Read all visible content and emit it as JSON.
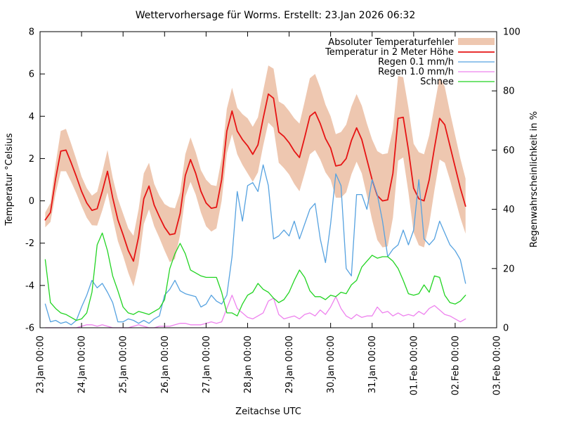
{
  "chart_data": {
    "type": "line",
    "title": "Wettervorhersage für Worms. Erstellt: 23.Jan 2026 06:32",
    "xlabel": "Zeitachse UTC",
    "ylabel_left": "Temperatur °Celsius",
    "ylabel_right": "Regenwahrscheinlichkeit in %",
    "grid": false,
    "legend_position": "top-right-inside",
    "x_axis": {
      "range_days": [
        0,
        11
      ],
      "tick_labels": [
        "23.Jan 00:00",
        "24.Jan 00:00",
        "25.Jan 00:00",
        "26.Jan 00:00",
        "27.Jan 00:00",
        "28.Jan 00:00",
        "29.Jan 00:00",
        "30.Jan 00:00",
        "31.Jan 00:00",
        "01.Feb 00:00",
        "02.Feb 00:00",
        "03.Feb 00:00"
      ]
    },
    "y_left": {
      "range": [
        -6,
        8
      ],
      "ticks": [
        8,
        6,
        4,
        2,
        0,
        -2,
        -4,
        -6
      ]
    },
    "y_right": {
      "range": [
        0,
        100
      ],
      "ticks": [
        100,
        80,
        60,
        40,
        20,
        0
      ]
    },
    "legend": [
      {
        "label": "Absoluter Temperaturfehler",
        "type": "band",
        "color": "#eec7b0"
      },
      {
        "label": "Temperatur in 2 Meter Höhe",
        "type": "line",
        "color": "#e61414",
        "axis": "left"
      },
      {
        "label": "Regen 0.1 mm/h",
        "type": "line",
        "color": "#56a2e0",
        "axis": "right"
      },
      {
        "label": "Regen 1.0 mm/h",
        "type": "line",
        "color": "#ee82ee",
        "axis": "right"
      },
      {
        "label": "Schnee",
        "type": "line",
        "color": "#22d422",
        "axis": "right"
      }
    ],
    "sampling": {
      "unit": "days since 23.Jan 00:00 UTC",
      "start_days": 0.125,
      "step_days": 0.125,
      "count": 82
    },
    "series": {
      "temperature_c": [
        -0.9,
        -0.55,
        1.05,
        2.35,
        2.4,
        1.8,
        1.15,
        0.45,
        -0.1,
        -0.45,
        -0.37,
        0.45,
        1.4,
        0.15,
        -0.9,
        -1.6,
        -2.35,
        -2.85,
        -1.7,
        0.1,
        0.7,
        -0.2,
        -0.75,
        -1.25,
        -1.6,
        -1.55,
        -0.6,
        1.2,
        1.95,
        1.3,
        0.45,
        -0.1,
        -0.35,
        -0.3,
        1.0,
        3.3,
        4.25,
        3.3,
        2.9,
        2.6,
        2.2,
        2.65,
        3.9,
        5.05,
        4.85,
        3.25,
        3.05,
        2.75,
        2.35,
        2.05,
        3.0,
        4.0,
        4.2,
        3.65,
        2.95,
        2.5,
        1.65,
        1.7,
        2.0,
        2.85,
        3.45,
        2.9,
        1.95,
        1.0,
        0.25,
        0.0,
        0.05,
        1.3,
        3.9,
        3.95,
        2.4,
        0.6,
        0.1,
        0.0,
        1.0,
        2.5,
        3.9,
        3.6,
        2.6,
        1.6,
        0.6,
        -0.25
      ],
      "temperature_error_c": [
        0.35,
        0.45,
        0.7,
        0.95,
        1.0,
        0.9,
        0.8,
        0.7,
        0.7,
        0.7,
        0.8,
        0.9,
        1.0,
        0.95,
        1.0,
        1.0,
        1.05,
        1.2,
        1.3,
        1.2,
        1.1,
        1.0,
        1.0,
        1.1,
        1.3,
        1.2,
        1.0,
        1.0,
        1.05,
        1.0,
        1.0,
        1.1,
        1.1,
        1.0,
        1.0,
        1.05,
        1.1,
        1.1,
        1.2,
        1.3,
        1.3,
        1.3,
        1.3,
        1.35,
        1.4,
        1.45,
        1.5,
        1.5,
        1.55,
        1.6,
        1.7,
        1.8,
        1.8,
        1.7,
        1.6,
        1.5,
        1.5,
        1.55,
        1.6,
        1.6,
        1.6,
        1.6,
        1.7,
        1.9,
        2.1,
        2.2,
        2.2,
        2.1,
        2.0,
        1.9,
        2.0,
        2.1,
        2.2,
        2.2,
        2.1,
        2.0,
        1.95,
        1.8,
        1.6,
        1.5,
        1.4,
        1.3
      ],
      "rain_01_pct": [
        8,
        2,
        2.5,
        1.5,
        2,
        1,
        2.5,
        7,
        11,
        16,
        13.5,
        15,
        12,
        8.5,
        2,
        2,
        3,
        2.5,
        1.5,
        2.5,
        1.5,
        3,
        4,
        11,
        13,
        16,
        12.5,
        11.5,
        11,
        10.5,
        7,
        8,
        11,
        9,
        8,
        11,
        24,
        46,
        36,
        48,
        49,
        46,
        55,
        48,
        30,
        31,
        33,
        31,
        36,
        30,
        35,
        40,
        42,
        30,
        22,
        35,
        52,
        48,
        20,
        17.5,
        45,
        45,
        40,
        50,
        45,
        36,
        24,
        26.5,
        28,
        33,
        28,
        33,
        50,
        30,
        28,
        30,
        36,
        32,
        28,
        26,
        23,
        15
      ],
      "rain_10_pct": [
        0,
        0,
        0,
        0,
        0,
        0,
        0,
        0.5,
        1,
        1,
        0.5,
        1,
        0.5,
        0,
        0,
        0,
        0,
        0.5,
        1,
        0.5,
        0,
        0,
        0.5,
        0.5,
        0.5,
        1,
        1.5,
        1.5,
        1,
        1,
        1,
        1.5,
        2,
        1.5,
        2,
        6.5,
        11,
        6.5,
        5,
        3.5,
        3,
        4,
        5,
        9,
        10,
        4.5,
        3,
        3.5,
        4,
        3,
        4.5,
        5,
        4,
        6,
        4.5,
        7,
        10.5,
        6.5,
        4,
        3,
        4.5,
        3.5,
        4,
        4,
        7,
        5,
        5.5,
        4,
        5,
        4,
        4.5,
        4,
        5.5,
        4.5,
        6.5,
        7.5,
        6,
        4.5,
        4,
        3,
        2,
        3
      ],
      "snow_pct": [
        23,
        8.5,
        6.5,
        5,
        4.5,
        3.5,
        2.5,
        3,
        5,
        12,
        28,
        32,
        26,
        17.5,
        12.5,
        7,
        5,
        4.5,
        5.5,
        5,
        4.5,
        5.5,
        6.5,
        9.5,
        20,
        25,
        28.5,
        25,
        19.5,
        18.5,
        17.5,
        17,
        17,
        17,
        12,
        5,
        5,
        4,
        8,
        11,
        12,
        15,
        13,
        12,
        10,
        8.5,
        9.5,
        12,
        16,
        19.5,
        17,
        12.5,
        10.5,
        10.5,
        9.5,
        11,
        10.5,
        12,
        11.5,
        14.5,
        16,
        20.5,
        22.5,
        24.5,
        23.5,
        24,
        24,
        22.5,
        20,
        16,
        11.5,
        11,
        11.5,
        14.5,
        12,
        17.5,
        17,
        11,
        8.5,
        8,
        9,
        11
      ]
    }
  }
}
